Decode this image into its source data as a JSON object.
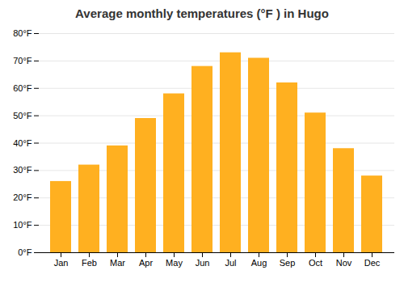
{
  "chart_data": {
    "type": "bar",
    "title": "Average monthly temperatures (°F ) in Hugo",
    "categories": [
      "Jan",
      "Feb",
      "Mar",
      "Apr",
      "May",
      "Jun",
      "Jul",
      "Aug",
      "Sep",
      "Oct",
      "Nov",
      "Dec"
    ],
    "values": [
      26,
      32,
      39,
      49,
      58,
      68,
      73,
      71,
      62,
      51,
      38,
      28
    ],
    "color": "#FFB020",
    "ylim": [
      0,
      80
    ],
    "yticks": [
      {
        "value": 0,
        "label": "0°F"
      },
      {
        "value": 10,
        "label": "10°F"
      },
      {
        "value": 20,
        "label": "20°F"
      },
      {
        "value": 30,
        "label": "30°F"
      },
      {
        "value": 40,
        "label": "40°F"
      },
      {
        "value": 50,
        "label": "50°F"
      },
      {
        "value": 60,
        "label": "60°F"
      },
      {
        "value": 70,
        "label": "70°F"
      },
      {
        "value": 80,
        "label": "80°F"
      }
    ],
    "grid": true
  }
}
